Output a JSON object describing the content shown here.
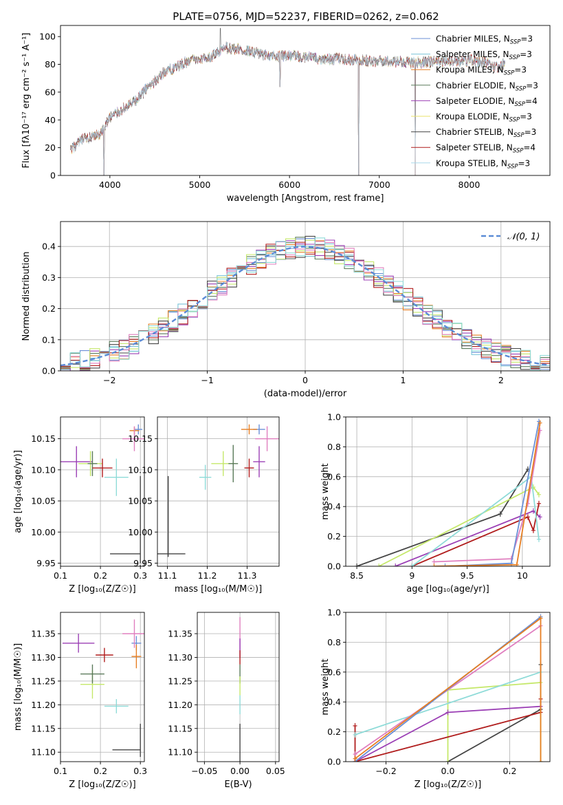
{
  "chart_data": [
    {
      "id": "spectrum",
      "type": "line",
      "title": "PLATE=0756, MJD=52237, FIBERID=0262, z=0.062",
      "xlabel": "wavelength [Angstrom, rest frame]",
      "ylabel": "Flux [fλ10⁻¹⁷ erg cm⁻² s⁻¹ A⁻¹]",
      "xlim": [
        3450,
        8900
      ],
      "ylim": [
        0,
        108
      ],
      "xticks": [
        4000,
        5000,
        6000,
        7000,
        8000
      ],
      "yticks": [
        0,
        20,
        40,
        60,
        80,
        100
      ],
      "grid": false,
      "legend": "top-right",
      "continuum": {
        "x": [
          3560,
          3700,
          3800,
          3900,
          4000,
          4100,
          4200,
          4300,
          4400,
          4500,
          4600,
          4700,
          4800,
          4900,
          5000,
          5100,
          5200,
          5300,
          5400,
          5500,
          5700,
          5900,
          6000,
          6200,
          6400,
          6600,
          6800,
          7000,
          7200,
          7400,
          7600,
          7800,
          8000,
          8200,
          8300,
          8400
        ],
        "y": [
          18,
          26,
          27,
          30,
          42,
          46,
          50,
          54,
          62,
          68,
          74,
          77,
          80,
          83,
          84,
          85,
          88,
          92,
          91,
          90,
          87,
          86,
          86,
          85,
          84,
          84,
          83,
          82,
          82,
          81,
          82,
          82,
          83,
          81,
          78,
          80
        ]
      },
      "dips": [
        {
          "x": 3934,
          "y": 0
        },
        {
          "x": 5895,
          "y": 64
        },
        {
          "x": 6770,
          "y": 0
        },
        {
          "x": 7400,
          "y": 0
        }
      ],
      "spikes": [
        {
          "x": 5230,
          "y": 106
        }
      ],
      "series": [
        {
          "name": "Chabrier MILES, N",
          "sub": "SSP",
          "suffix": "=3",
          "color": "#6a8fd6"
        },
        {
          "name": "Salpeter MILES, N",
          "sub": "SSP",
          "suffix": "=3",
          "color": "#79c2d8"
        },
        {
          "name": "Kroupa MILES, N",
          "sub": "SSP",
          "suffix": "=3",
          "color": "#e67e22"
        },
        {
          "name": "Chabrier ELODIE, N",
          "sub": "SSP",
          "suffix": "=3",
          "color": "#5a7a5a"
        },
        {
          "name": "Salpeter ELODIE, N",
          "sub": "SSP",
          "suffix": "=4",
          "color": "#9b3fb5"
        },
        {
          "name": "Kroupa ELODIE, N",
          "sub": "SSP",
          "suffix": "=3",
          "color": "#e8e06a"
        },
        {
          "name": "Chabrier STELIB, N",
          "sub": "SSP",
          "suffix": "=3",
          "color": "#444444"
        },
        {
          "name": "Salpeter STELIB, N",
          "sub": "SSP",
          "suffix": "=4",
          "color": "#b01c1c"
        },
        {
          "name": "Kroupa STELIB, N",
          "sub": "SSP",
          "suffix": "=3",
          "color": "#a8d8ea"
        }
      ]
    },
    {
      "id": "residuals",
      "type": "line",
      "xlabel": "(data-model)/error",
      "ylabel": "Normed distribution",
      "xlim": [
        -2.5,
        2.5
      ],
      "ylim": [
        0,
        0.48
      ],
      "xticks": [
        -2,
        -1,
        0,
        1,
        2
      ],
      "yticks": [
        0.0,
        0.1,
        0.2,
        0.3,
        0.4
      ],
      "grid": true,
      "legend": "top-right",
      "legend_label": "𝒩(0, 1)",
      "gaussian": {
        "mu": 0,
        "sigma": 1,
        "color": "#5b8bd6"
      },
      "bin_width": 0.1,
      "histogram_colors": [
        "#6a8fd6",
        "#79c2d8",
        "#e67e22",
        "#5a7a5a",
        "#9b3fb5",
        "#c5e86a",
        "#444444",
        "#b01c1c",
        "#e07fbf",
        "#8edbd8"
      ]
    },
    {
      "id": "z-age",
      "type": "scatter",
      "xlabel": "Z [log₁₀(Z/Z☉)]",
      "ylabel": "age  [log₁₀(age/yr)]",
      "xlim": [
        0.1,
        0.31
      ],
      "ylim": [
        9.945,
        10.185
      ],
      "xticks": [
        0.1,
        0.2,
        0.3
      ],
      "yticks": [
        9.95,
        10.0,
        10.05,
        10.1,
        10.15
      ],
      "ytick_labels": [
        "9.95",
        "10.00",
        "10.05",
        "10.10",
        "10.15"
      ],
      "grid": true,
      "points": [
        {
          "x": 0.295,
          "y": 10.165,
          "xerr": 0.01,
          "yerr": 0.008,
          "color": "#6a8fd6"
        },
        {
          "x": 0.285,
          "y": 10.163,
          "xerr": 0.012,
          "yerr": 0.006,
          "color": "#e67e22"
        },
        {
          "x": 0.285,
          "y": 10.15,
          "xerr": 0.03,
          "yerr": 0.02,
          "color": "#e07fbf"
        },
        {
          "x": 0.14,
          "y": 10.113,
          "xerr": 0.04,
          "yerr": 0.025,
          "color": "#9b3fb5"
        },
        {
          "x": 0.175,
          "y": 10.11,
          "xerr": 0.03,
          "yerr": 0.02,
          "color": "#c5e86a"
        },
        {
          "x": 0.18,
          "y": 10.11,
          "xerr": 0.012,
          "yerr": 0.02,
          "color": "#5a7a5a"
        },
        {
          "x": 0.205,
          "y": 10.103,
          "xerr": 0.025,
          "yerr": 0.015,
          "color": "#b01c1c"
        },
        {
          "x": 0.24,
          "y": 10.088,
          "xerr": 0.03,
          "yerr": 0.03,
          "color": "#8edbd8"
        },
        {
          "x": 0.262,
          "y": 9.965,
          "xerr": 0.038,
          "yerr": 0.0,
          "color": "#444444"
        },
        {
          "x": 0.3,
          "y": 10.02,
          "xerr": 0.0,
          "yerr": 0.07,
          "color": "#444444"
        }
      ]
    },
    {
      "id": "mass-age",
      "type": "scatter",
      "xlabel": "mass [log₁₀(M/M☉)]",
      "ylabel": "",
      "xlim": [
        11.075,
        11.38
      ],
      "ylim": [
        9.945,
        10.185
      ],
      "xticks": [
        11.1,
        11.2,
        11.3
      ],
      "yticks": [
        9.95,
        10.0,
        10.05,
        10.1,
        10.15
      ],
      "ytick_labels": [
        "9.95",
        "10.00",
        "10.05",
        "10.10",
        "10.15"
      ],
      "grid": true,
      "points": [
        {
          "x": 11.33,
          "y": 10.165,
          "xerr": 0.015,
          "yerr": 0.008,
          "color": "#6a8fd6"
        },
        {
          "x": 11.305,
          "y": 10.165,
          "xerr": 0.02,
          "yerr": 0.008,
          "color": "#e67e22"
        },
        {
          "x": 11.35,
          "y": 10.15,
          "xerr": 0.03,
          "yerr": 0.02,
          "color": "#e07fbf"
        },
        {
          "x": 11.33,
          "y": 10.113,
          "xerr": 0.015,
          "yerr": 0.025,
          "color": "#9b3fb5"
        },
        {
          "x": 11.24,
          "y": 10.11,
          "xerr": 0.03,
          "yerr": 0.02,
          "color": "#c5e86a"
        },
        {
          "x": 11.265,
          "y": 10.11,
          "xerr": 0.012,
          "yerr": 0.03,
          "color": "#5a7a5a"
        },
        {
          "x": 11.305,
          "y": 10.103,
          "xerr": 0.012,
          "yerr": 0.015,
          "color": "#b01c1c"
        },
        {
          "x": 11.195,
          "y": 10.088,
          "xerr": 0.015,
          "yerr": 0.02,
          "color": "#8edbd8"
        },
        {
          "x": 11.105,
          "y": 9.965,
          "xerr": 0.04,
          "yerr": 0.0,
          "color": "#444444"
        },
        {
          "x": 11.102,
          "y": 10.025,
          "xerr": 0.0,
          "yerr": 0.065,
          "color": "#444444"
        }
      ]
    },
    {
      "id": "age-weight",
      "type": "line",
      "xlabel": "age  [log₁₀(age/yr)]",
      "ylabel": "mass weight",
      "xlim": [
        8.4,
        10.25
      ],
      "ylim": [
        0,
        1.0
      ],
      "xticks": [
        8.5,
        9.0,
        9.5,
        10.0
      ],
      "yticks": [
        0.0,
        0.2,
        0.4,
        0.6,
        0.8,
        1.0
      ],
      "grid": true,
      "series": [
        {
          "color": "#444444",
          "x": [
            8.5,
            9.8,
            10.05
          ],
          "y": [
            0.0,
            0.35,
            0.65
          ]
        },
        {
          "color": "#c5e86a",
          "x": [
            8.7,
            10.1,
            10.15
          ],
          "y": [
            0.0,
            0.53,
            0.48
          ]
        },
        {
          "color": "#9b3fb5",
          "x": [
            8.85,
            10.1,
            10.16
          ],
          "y": [
            0.0,
            0.37,
            0.33
          ]
        },
        {
          "color": "#b01c1c",
          "x": [
            9.0,
            10.05,
            10.1,
            10.15
          ],
          "y": [
            0.0,
            0.33,
            0.24,
            0.42
          ]
        },
        {
          "color": "#8edbd8",
          "x": [
            9.0,
            10.08,
            10.15
          ],
          "y": [
            0.0,
            0.6,
            0.18
          ]
        },
        {
          "color": "#e07fbf",
          "x": [
            9.2,
            9.9,
            10.05,
            10.16
          ],
          "y": [
            0.03,
            0.05,
            0.42,
            0.91
          ]
        },
        {
          "color": "#6a8fd6",
          "x": [
            9.3,
            9.9,
            10.15
          ],
          "y": [
            0.0,
            0.02,
            0.97
          ]
        },
        {
          "color": "#e67e22",
          "x": [
            9.2,
            9.95,
            10.16
          ],
          "y": [
            0.0,
            0.01,
            0.96
          ]
        }
      ]
    },
    {
      "id": "z-mass",
      "type": "scatter",
      "xlabel": "Z [log₁₀(Z/Z☉)]",
      "ylabel": "mass [log₁₀(M/M☉)]",
      "xlim": [
        0.1,
        0.31
      ],
      "ylim": [
        11.08,
        11.395
      ],
      "xticks": [
        0.1,
        0.2,
        0.3
      ],
      "yticks": [
        11.1,
        11.15,
        11.2,
        11.25,
        11.3,
        11.35
      ],
      "ytick_labels": [
        "11.10",
        "11.15",
        "11.20",
        "11.25",
        "11.30",
        "11.35"
      ],
      "grid": true,
      "points": [
        {
          "x": 0.29,
          "y": 11.33,
          "xerr": 0.012,
          "yerr": 0.015,
          "color": "#6a8fd6"
        },
        {
          "x": 0.29,
          "y": 11.302,
          "xerr": 0.012,
          "yerr": 0.025,
          "color": "#e67e22"
        },
        {
          "x": 0.285,
          "y": 11.35,
          "xerr": 0.03,
          "yerr": 0.03,
          "color": "#e07fbf"
        },
        {
          "x": 0.145,
          "y": 11.33,
          "xerr": 0.04,
          "yerr": 0.02,
          "color": "#9b3fb5"
        },
        {
          "x": 0.18,
          "y": 11.243,
          "xerr": 0.03,
          "yerr": 0.03,
          "color": "#c5e86a"
        },
        {
          "x": 0.18,
          "y": 11.265,
          "xerr": 0.03,
          "yerr": 0.02,
          "color": "#5a7a5a"
        },
        {
          "x": 0.21,
          "y": 11.305,
          "xerr": 0.022,
          "yerr": 0.015,
          "color": "#b01c1c"
        },
        {
          "x": 0.24,
          "y": 11.197,
          "xerr": 0.03,
          "yerr": 0.015,
          "color": "#8edbd8"
        },
        {
          "x": 0.265,
          "y": 11.105,
          "xerr": 0.035,
          "yerr": 0.0,
          "color": "#444444"
        },
        {
          "x": 0.3,
          "y": 11.125,
          "xerr": 0.0,
          "yerr": 0.035,
          "color": "#444444"
        }
      ]
    },
    {
      "id": "ebv-mass",
      "type": "scatter",
      "xlabel": "E(B-V)",
      "ylabel": "",
      "xlim": [
        -0.06,
        0.055
      ],
      "ylim": [
        11.08,
        11.395
      ],
      "xticks": [
        -0.05,
        0.0,
        0.05
      ],
      "xtick_labels": [
        "−0.05",
        "0.00",
        "0.05"
      ],
      "yticks": [
        11.1,
        11.15,
        11.2,
        11.25,
        11.3,
        11.35
      ],
      "ytick_labels": [
        "11.10",
        "11.15",
        "11.20",
        "11.25",
        "11.30",
        "11.35"
      ],
      "grid": true,
      "points": [
        {
          "x": 0.0,
          "y": 11.35,
          "xerr": 0.0,
          "yerr": 0.035,
          "color": "#e07fbf"
        },
        {
          "x": 0.0,
          "y": 11.32,
          "xerr": 0.0,
          "yerr": 0.02,
          "color": "#9b3fb5"
        },
        {
          "x": 0.0,
          "y": 11.3,
          "xerr": 0.0,
          "yerr": 0.015,
          "color": "#b01c1c"
        },
        {
          "x": 0.0,
          "y": 11.265,
          "xerr": 0.0,
          "yerr": 0.02,
          "color": "#5a7a5a"
        },
        {
          "x": 0.0,
          "y": 11.24,
          "xerr": 0.0,
          "yerr": 0.02,
          "color": "#c5e86a"
        },
        {
          "x": 0.0,
          "y": 11.2,
          "xerr": 0.0,
          "yerr": 0.02,
          "color": "#8edbd8"
        },
        {
          "x": 0.0,
          "y": 11.12,
          "xerr": 0.0,
          "yerr": 0.04,
          "color": "#444444"
        }
      ]
    },
    {
      "id": "z-weight",
      "type": "line",
      "xlabel": "Z [log₁₀(Z/Z☉)]",
      "ylabel": "mass weight",
      "xlim": [
        -0.33,
        0.33
      ],
      "ylim": [
        0,
        1.0
      ],
      "xticks": [
        -0.2,
        0.0,
        0.2
      ],
      "xtick_labels": [
        "−0.2",
        "0.0",
        "0.2"
      ],
      "yticks": [
        0.0,
        0.2,
        0.4,
        0.6,
        0.8,
        1.0
      ],
      "grid": true,
      "series": [
        {
          "color": "#444444",
          "x": [
            0.0,
            0.3,
            0.3
          ],
          "y": [
            0.0,
            0.35,
            0.65
          ]
        },
        {
          "color": "#c5e86a",
          "x": [
            0.0,
            0.0,
            0.3,
            0.3
          ],
          "y": [
            0.0,
            0.48,
            0.53,
            0.0
          ]
        },
        {
          "color": "#9b3fb5",
          "x": [
            -0.3,
            0.0,
            0.3
          ],
          "y": [
            0.0,
            0.33,
            0.37
          ]
        },
        {
          "color": "#b01c1c",
          "x": [
            -0.3,
            -0.3,
            0.3,
            0.3
          ],
          "y": [
            0.24,
            0.0,
            0.33,
            0.42
          ]
        },
        {
          "color": "#8edbd8",
          "x": [
            -0.3,
            0.3
          ],
          "y": [
            0.18,
            0.6
          ]
        },
        {
          "color": "#e07fbf",
          "x": [
            -0.3,
            0.3
          ],
          "y": [
            0.05,
            0.91
          ]
        },
        {
          "color": "#6a8fd6",
          "x": [
            -0.3,
            0.3
          ],
          "y": [
            0.0,
            0.97
          ]
        },
        {
          "color": "#e67e22",
          "x": [
            -0.3,
            0.3,
            0.3
          ],
          "y": [
            0.02,
            0.96,
            0.0
          ]
        }
      ]
    }
  ]
}
